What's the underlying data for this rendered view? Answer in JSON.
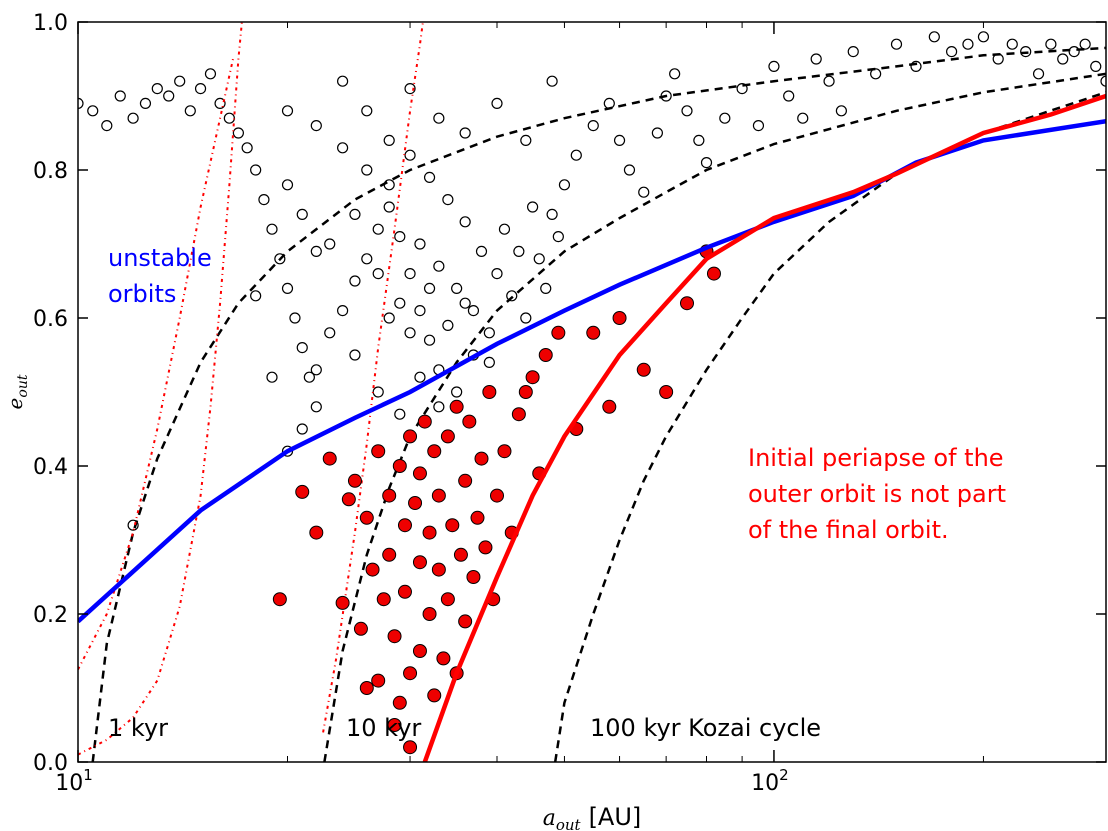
{
  "chart_data": {
    "type": "scatter",
    "x_scale": "log",
    "xlim": [
      10,
      300
    ],
    "ylim": [
      0.0,
      1.0
    ],
    "grid": false,
    "xlabel": {
      "symbol": "a",
      "subscript": "out",
      "unit": "[AU]"
    },
    "ylabel": {
      "symbol": "e",
      "subscript": "out"
    },
    "xticks": [
      {
        "value": 10,
        "base": "10",
        "exp": "1"
      },
      {
        "value": 100,
        "base": "10",
        "exp": "2"
      }
    ],
    "yticks": [
      "0.0",
      "0.2",
      "0.4",
      "0.6",
      "0.8",
      "1.0"
    ],
    "annotations": [
      {
        "id": "unstable",
        "lines": [
          "unstable",
          "orbits"
        ],
        "color": "#0000ff"
      },
      {
        "id": "periapse",
        "lines": [
          "Initial periapse of the",
          "outer orbit is not part",
          "of the final orbit."
        ],
        "color": "#ff0000"
      },
      {
        "id": "kyr1",
        "lines": [
          "1 kyr"
        ],
        "color": "#000000"
      },
      {
        "id": "kyr10",
        "lines": [
          "10 kyr"
        ],
        "color": "#000000"
      },
      {
        "id": "kyr100",
        "lines": [
          "100 kyr Kozai cycle"
        ],
        "color": "#000000"
      }
    ],
    "colors": {
      "stable": "#ee0000",
      "stable_edge": "#000000",
      "unstable_edge": "#000000",
      "blue_line": "#0000ff",
      "red_line": "#ff0000",
      "dashed": "#000000"
    },
    "series": [
      {
        "kind": "dashed",
        "color": "#000000",
        "points": [
          [
            10.5,
            0.0
          ],
          [
            11,
            0.16
          ],
          [
            12,
            0.31
          ],
          [
            13,
            0.41
          ],
          [
            15,
            0.54
          ],
          [
            17,
            0.62
          ],
          [
            20,
            0.69
          ],
          [
            25,
            0.76
          ],
          [
            30,
            0.8
          ],
          [
            40,
            0.845
          ],
          [
            50,
            0.87
          ],
          [
            70,
            0.9
          ],
          [
            100,
            0.92
          ],
          [
            150,
            0.94
          ],
          [
            200,
            0.955
          ],
          [
            300,
            0.965
          ]
        ]
      },
      {
        "kind": "dashed",
        "color": "#000000",
        "points": [
          [
            22.6,
            0.0
          ],
          [
            24,
            0.15
          ],
          [
            26,
            0.28
          ],
          [
            28,
            0.37
          ],
          [
            30,
            0.44
          ],
          [
            35,
            0.54
          ],
          [
            40,
            0.61
          ],
          [
            50,
            0.69
          ],
          [
            60,
            0.735
          ],
          [
            70,
            0.77
          ],
          [
            80,
            0.8
          ],
          [
            100,
            0.835
          ],
          [
            150,
            0.88
          ],
          [
            200,
            0.905
          ],
          [
            300,
            0.93
          ]
        ]
      },
      {
        "kind": "dashed",
        "color": "#000000",
        "points": [
          [
            48.5,
            0.0
          ],
          [
            50,
            0.08
          ],
          [
            55,
            0.2
          ],
          [
            60,
            0.3
          ],
          [
            65,
            0.38
          ],
          [
            70,
            0.44
          ],
          [
            80,
            0.53
          ],
          [
            90,
            0.6
          ],
          [
            100,
            0.66
          ],
          [
            120,
            0.73
          ],
          [
            150,
            0.795
          ],
          [
            200,
            0.85
          ],
          [
            300,
            0.905
          ]
        ]
      },
      {
        "kind": "dotted",
        "color": "#ff0000",
        "points": [
          [
            10,
            0.01
          ],
          [
            11,
            0.03
          ],
          [
            12,
            0.06
          ],
          [
            13,
            0.11
          ],
          [
            14,
            0.21
          ],
          [
            15,
            0.36
          ],
          [
            15.5,
            0.48
          ],
          [
            16,
            0.62
          ],
          [
            16.5,
            0.78
          ],
          [
            17,
            0.95
          ],
          [
            17.2,
            1.0
          ]
        ]
      },
      {
        "kind": "dotted",
        "color": "#ff0000",
        "points": [
          [
            10,
            0.125
          ],
          [
            11,
            0.2
          ],
          [
            12,
            0.31
          ],
          [
            13,
            0.45
          ],
          [
            14,
            0.6
          ],
          [
            15,
            0.75
          ],
          [
            16,
            0.87
          ],
          [
            16.7,
            0.95
          ]
        ]
      },
      {
        "kind": "dotted",
        "color": "#ff0000",
        "points": [
          [
            22.5,
            0.04
          ],
          [
            23.5,
            0.14
          ],
          [
            25,
            0.31
          ],
          [
            26,
            0.43
          ],
          [
            27,
            0.56
          ],
          [
            28.5,
            0.72
          ],
          [
            30,
            0.88
          ],
          [
            31,
            0.97
          ],
          [
            31.3,
            1.0
          ]
        ]
      },
      {
        "kind": "blue",
        "color": "#0000ff",
        "points": [
          [
            10,
            0.19
          ],
          [
            15,
            0.34
          ],
          [
            20,
            0.42
          ],
          [
            25,
            0.465
          ],
          [
            30,
            0.5
          ],
          [
            40,
            0.565
          ],
          [
            50,
            0.61
          ],
          [
            60,
            0.645
          ],
          [
            80,
            0.695
          ],
          [
            100,
            0.73
          ],
          [
            130,
            0.765
          ],
          [
            160,
            0.81
          ],
          [
            200,
            0.84
          ],
          [
            300,
            0.866
          ]
        ]
      },
      {
        "kind": "red",
        "color": "#ff0000",
        "points": [
          [
            31.5,
            0.0
          ],
          [
            35,
            0.12
          ],
          [
            40,
            0.25
          ],
          [
            45,
            0.36
          ],
          [
            50,
            0.44
          ],
          [
            60,
            0.55
          ],
          [
            70,
            0.62
          ],
          [
            80,
            0.68
          ],
          [
            100,
            0.735
          ],
          [
            130,
            0.77
          ],
          [
            150,
            0.795
          ],
          [
            200,
            0.85
          ],
          [
            250,
            0.875
          ],
          [
            300,
            0.9
          ]
        ]
      }
    ],
    "stable_points": [
      [
        19.5,
        0.22
      ],
      [
        21,
        0.365
      ],
      [
        22,
        0.31
      ],
      [
        23,
        0.41
      ],
      [
        24,
        0.215
      ],
      [
        24.5,
        0.355
      ],
      [
        25,
        0.38
      ],
      [
        25.5,
        0.18
      ],
      [
        26,
        0.1
      ],
      [
        26,
        0.33
      ],
      [
        26.5,
        0.26
      ],
      [
        27,
        0.11
      ],
      [
        27,
        0.42
      ],
      [
        27.5,
        0.22
      ],
      [
        28,
        0.36
      ],
      [
        28,
        0.28
      ],
      [
        28.5,
        0.17
      ],
      [
        28.5,
        0.05
      ],
      [
        29,
        0.4
      ],
      [
        29,
        0.08
      ],
      [
        29.5,
        0.32
      ],
      [
        29.5,
        0.23
      ],
      [
        30,
        0.44
      ],
      [
        30,
        0.12
      ],
      [
        30,
        0.02
      ],
      [
        30.5,
        0.35
      ],
      [
        31,
        0.27
      ],
      [
        31,
        0.15
      ],
      [
        31,
        0.39
      ],
      [
        31.5,
        0.46
      ],
      [
        32,
        0.31
      ],
      [
        32,
        0.2
      ],
      [
        32.5,
        0.09
      ],
      [
        32.5,
        0.42
      ],
      [
        33,
        0.26
      ],
      [
        33,
        0.36
      ],
      [
        33.5,
        0.14
      ],
      [
        34,
        0.44
      ],
      [
        34,
        0.22
      ],
      [
        34.5,
        0.32
      ],
      [
        35,
        0.48
      ],
      [
        35,
        0.12
      ],
      [
        35.5,
        0.28
      ],
      [
        36,
        0.38
      ],
      [
        36,
        0.19
      ],
      [
        36.5,
        0.46
      ],
      [
        37,
        0.25
      ],
      [
        37.5,
        0.33
      ],
      [
        38,
        0.41
      ],
      [
        38.5,
        0.29
      ],
      [
        39,
        0.5
      ],
      [
        39.5,
        0.22
      ],
      [
        40,
        0.36
      ],
      [
        41,
        0.42
      ],
      [
        42,
        0.31
      ],
      [
        43,
        0.47
      ],
      [
        44,
        0.5
      ],
      [
        45,
        0.52
      ],
      [
        46,
        0.39
      ],
      [
        47,
        0.55
      ],
      [
        49,
        0.58
      ],
      [
        52,
        0.45
      ],
      [
        55,
        0.58
      ],
      [
        58,
        0.48
      ],
      [
        60,
        0.6
      ],
      [
        65,
        0.53
      ],
      [
        70,
        0.5
      ],
      [
        75,
        0.62
      ],
      [
        80,
        0.69
      ],
      [
        82,
        0.66
      ]
    ],
    "unstable_points": [
      [
        10,
        0.89
      ],
      [
        10.5,
        0.88
      ],
      [
        11,
        0.86
      ],
      [
        11.5,
        0.9
      ],
      [
        12,
        0.87
      ],
      [
        12.5,
        0.89
      ],
      [
        13,
        0.91
      ],
      [
        13.5,
        0.9
      ],
      [
        14,
        0.92
      ],
      [
        14.5,
        0.88
      ],
      [
        15,
        0.91
      ],
      [
        15.5,
        0.93
      ],
      [
        16,
        0.89
      ],
      [
        16.5,
        0.87
      ],
      [
        17,
        0.85
      ],
      [
        17.5,
        0.83
      ],
      [
        18,
        0.8
      ],
      [
        18.5,
        0.76
      ],
      [
        19,
        0.72
      ],
      [
        19.5,
        0.68
      ],
      [
        20,
        0.64
      ],
      [
        20.5,
        0.6
      ],
      [
        21,
        0.56
      ],
      [
        21.5,
        0.52
      ],
      [
        22,
        0.48
      ],
      [
        12,
        0.32
      ],
      [
        18,
        0.63
      ],
      [
        19,
        0.52
      ],
      [
        20,
        0.42
      ],
      [
        21,
        0.45
      ],
      [
        22,
        0.53
      ],
      [
        23,
        0.58
      ],
      [
        24,
        0.61
      ],
      [
        25,
        0.65
      ],
      [
        26,
        0.68
      ],
      [
        27,
        0.72
      ],
      [
        28,
        0.75
      ],
      [
        29,
        0.71
      ],
      [
        30,
        0.66
      ],
      [
        31,
        0.61
      ],
      [
        32,
        0.57
      ],
      [
        33,
        0.53
      ],
      [
        20,
        0.88
      ],
      [
        22,
        0.86
      ],
      [
        24,
        0.83
      ],
      [
        26,
        0.8
      ],
      [
        28,
        0.78
      ],
      [
        30,
        0.82
      ],
      [
        32,
        0.79
      ],
      [
        34,
        0.76
      ],
      [
        36,
        0.73
      ],
      [
        38,
        0.69
      ],
      [
        40,
        0.66
      ],
      [
        42,
        0.63
      ],
      [
        44,
        0.6
      ],
      [
        46,
        0.68
      ],
      [
        48,
        0.74
      ],
      [
        50,
        0.78
      ],
      [
        52,
        0.82
      ],
      [
        55,
        0.86
      ],
      [
        58,
        0.89
      ],
      [
        60,
        0.84
      ],
      [
        62,
        0.8
      ],
      [
        65,
        0.77
      ],
      [
        68,
        0.85
      ],
      [
        70,
        0.9
      ],
      [
        72,
        0.93
      ],
      [
        75,
        0.88
      ],
      [
        78,
        0.84
      ],
      [
        80,
        0.81
      ],
      [
        85,
        0.87
      ],
      [
        90,
        0.91
      ],
      [
        95,
        0.86
      ],
      [
        100,
        0.94
      ],
      [
        105,
        0.9
      ],
      [
        110,
        0.87
      ],
      [
        115,
        0.95
      ],
      [
        120,
        0.92
      ],
      [
        125,
        0.88
      ],
      [
        130,
        0.96
      ],
      [
        140,
        0.93
      ],
      [
        150,
        0.97
      ],
      [
        160,
        0.94
      ],
      [
        170,
        0.98
      ],
      [
        180,
        0.96
      ],
      [
        190,
        0.97
      ],
      [
        200,
        0.98
      ],
      [
        210,
        0.95
      ],
      [
        220,
        0.97
      ],
      [
        230,
        0.96
      ],
      [
        240,
        0.93
      ],
      [
        250,
        0.97
      ],
      [
        260,
        0.95
      ],
      [
        270,
        0.96
      ],
      [
        280,
        0.97
      ],
      [
        290,
        0.94
      ],
      [
        300,
        0.92
      ],
      [
        23,
        0.7
      ],
      [
        25,
        0.74
      ],
      [
        27,
        0.66
      ],
      [
        29,
        0.62
      ],
      [
        31,
        0.7
      ],
      [
        33,
        0.67
      ],
      [
        35,
        0.64
      ],
      [
        37,
        0.61
      ],
      [
        39,
        0.58
      ],
      [
        41,
        0.72
      ],
      [
        43,
        0.69
      ],
      [
        45,
        0.75
      ],
      [
        47,
        0.64
      ],
      [
        49,
        0.71
      ],
      [
        20,
        0.78
      ],
      [
        21,
        0.74
      ],
      [
        22,
        0.69
      ],
      [
        24,
        0.92
      ],
      [
        26,
        0.88
      ],
      [
        28,
        0.84
      ],
      [
        30,
        0.91
      ],
      [
        33,
        0.87
      ],
      [
        36,
        0.85
      ],
      [
        40,
        0.89
      ],
      [
        44,
        0.84
      ],
      [
        48,
        0.92
      ],
      [
        25,
        0.55
      ],
      [
        27,
        0.5
      ],
      [
        29,
        0.47
      ],
      [
        31,
        0.52
      ],
      [
        33,
        0.48
      ],
      [
        35,
        0.5
      ],
      [
        37,
        0.55
      ],
      [
        39,
        0.54
      ],
      [
        28,
        0.6
      ],
      [
        30,
        0.58
      ],
      [
        32,
        0.64
      ],
      [
        34,
        0.59
      ],
      [
        36,
        0.62
      ]
    ]
  }
}
